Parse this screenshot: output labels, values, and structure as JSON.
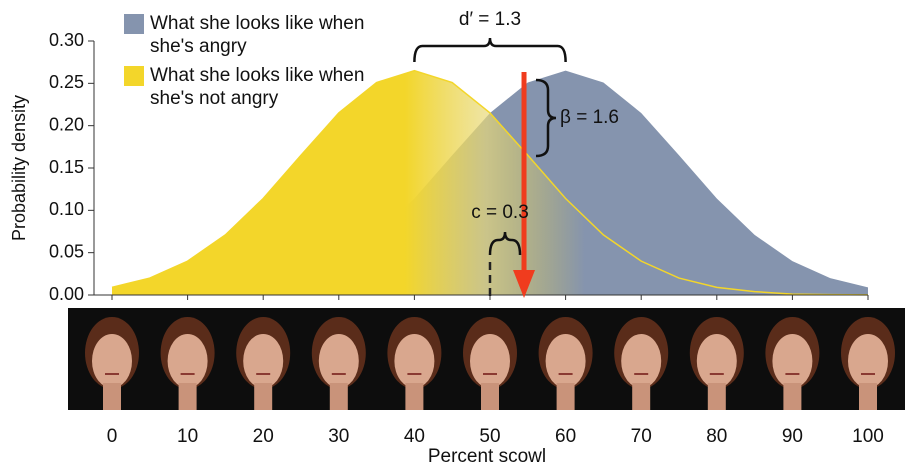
{
  "chart_data": {
    "type": "area",
    "x_label": "Percent scowl",
    "y_label": "Probability density",
    "x": [
      0,
      5,
      10,
      15,
      20,
      25,
      30,
      35,
      40,
      45,
      50,
      55,
      60,
      65,
      70,
      75,
      80,
      85,
      90,
      95,
      100
    ],
    "series": [
      {
        "name": "What she looks like when she's not angry",
        "color": "#f3d62a",
        "values": [
          0.009,
          0.02,
          0.04,
          0.071,
          0.114,
          0.165,
          0.215,
          0.251,
          0.265,
          0.251,
          0.215,
          0.165,
          0.114,
          0.071,
          0.04,
          0.02,
          0.009,
          0.004,
          0.001,
          0.0004,
          0.0001
        ]
      },
      {
        "name": "What she looks like when she's angry",
        "color": "#8594ae",
        "values": [
          0.0001,
          0.0004,
          0.001,
          0.004,
          0.009,
          0.02,
          0.04,
          0.071,
          0.114,
          0.165,
          0.215,
          0.251,
          0.265,
          0.251,
          0.215,
          0.165,
          0.114,
          0.071,
          0.04,
          0.02,
          0.009
        ]
      }
    ],
    "xlim": [
      0,
      100
    ],
    "xticks": [
      0,
      10,
      20,
      30,
      40,
      50,
      60,
      70,
      80,
      90,
      100
    ],
    "ylim": [
      0,
      0.3
    ],
    "yticks": [
      {
        "value": 0,
        "label": "0.00"
      },
      {
        "value": 0.05,
        "label": "0.05"
      },
      {
        "value": 0.1,
        "label": "0.10"
      },
      {
        "value": 0.15,
        "label": "0.15"
      },
      {
        "value": 0.2,
        "label": "0.20"
      },
      {
        "value": 0.25,
        "label": "0.25"
      },
      {
        "value": 0.3,
        "label": "0.30"
      }
    ],
    "criterion": 54.5,
    "criterion_color": "#f03c1e",
    "annotations": {
      "d_prime": "d′ = 1.3",
      "beta": "β = 1.6",
      "c": "c = 0.3"
    }
  }
}
